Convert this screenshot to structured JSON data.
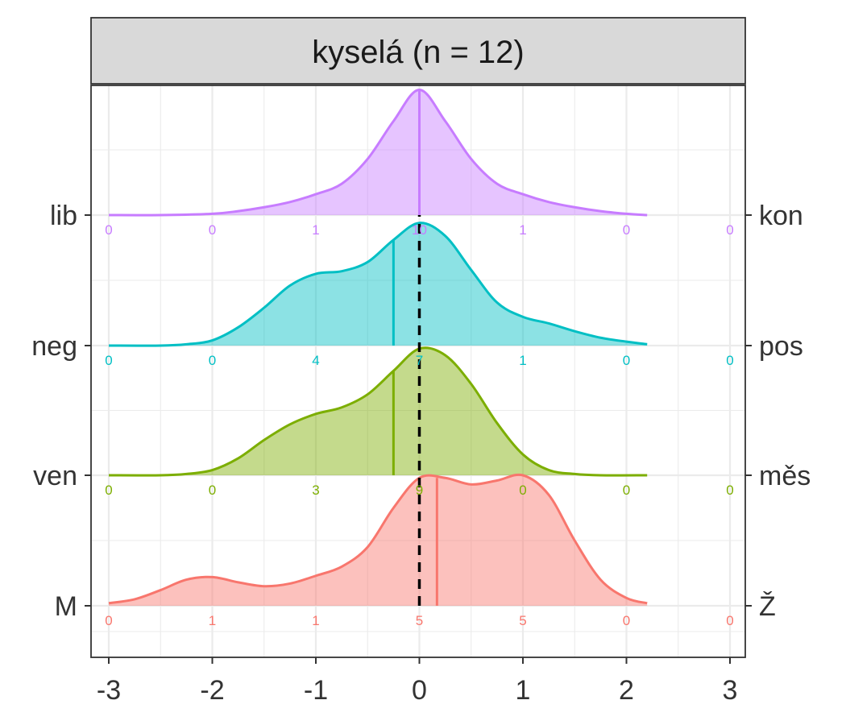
{
  "chart_data": {
    "type": "ridgeline",
    "title": "kyselá (n = 12)",
    "xlim": [
      -3,
      3
    ],
    "x_ticks": [
      "-3",
      "-2",
      "-1",
      "0",
      "1",
      "2",
      "3"
    ],
    "grid": true,
    "reference_line": {
      "x": 0,
      "style": "dashed"
    },
    "count_bins": [
      -3,
      -2,
      -1,
      0,
      1,
      2,
      3
    ],
    "series": [
      {
        "left_label": "M",
        "right_label": "Ž",
        "color": "#F8766D",
        "counts": [
          "0",
          "1",
          "1",
          "5",
          "5",
          "0",
          "0"
        ],
        "mean": 0.17,
        "density": [
          [
            -3,
            0.02
          ],
          [
            -2.75,
            0.05
          ],
          [
            -2.5,
            0.12
          ],
          [
            -2.25,
            0.2
          ],
          [
            -2,
            0.22
          ],
          [
            -1.75,
            0.18
          ],
          [
            -1.5,
            0.15
          ],
          [
            -1.25,
            0.17
          ],
          [
            -1,
            0.23
          ],
          [
            -0.75,
            0.3
          ],
          [
            -0.5,
            0.45
          ],
          [
            -0.25,
            0.75
          ],
          [
            0,
            0.98
          ],
          [
            0.25,
            0.98
          ],
          [
            0.5,
            0.93
          ],
          [
            0.75,
            0.96
          ],
          [
            1,
            1.0
          ],
          [
            1.25,
            0.85
          ],
          [
            1.5,
            0.5
          ],
          [
            1.75,
            0.2
          ],
          [
            2,
            0.06
          ],
          [
            2.2,
            0.02
          ]
        ]
      },
      {
        "left_label": "ven",
        "right_label": "měs",
        "color": "#7CAE00",
        "counts": [
          "0",
          "0",
          "3",
          "9",
          "0",
          "0",
          "0"
        ],
        "mean": -0.25,
        "density": [
          [
            -3,
            0.0
          ],
          [
            -2.5,
            0.0
          ],
          [
            -2.25,
            0.01
          ],
          [
            -2,
            0.04
          ],
          [
            -1.75,
            0.13
          ],
          [
            -1.5,
            0.27
          ],
          [
            -1.25,
            0.39
          ],
          [
            -1,
            0.47
          ],
          [
            -0.75,
            0.52
          ],
          [
            -0.5,
            0.62
          ],
          [
            -0.25,
            0.8
          ],
          [
            0,
            0.97
          ],
          [
            0.25,
            0.92
          ],
          [
            0.5,
            0.7
          ],
          [
            0.75,
            0.4
          ],
          [
            1,
            0.16
          ],
          [
            1.25,
            0.04
          ],
          [
            1.5,
            0.01
          ],
          [
            1.75,
            0.0
          ],
          [
            2.2,
            0.0
          ]
        ]
      },
      {
        "left_label": "neg",
        "right_label": "pos",
        "color": "#00BFC4",
        "counts": [
          "0",
          "0",
          "4",
          "7",
          "1",
          "0",
          "0"
        ],
        "mean": -0.25,
        "density": [
          [
            -3,
            0.0
          ],
          [
            -2.5,
            0.0
          ],
          [
            -2.25,
            0.01
          ],
          [
            -2,
            0.04
          ],
          [
            -1.75,
            0.14
          ],
          [
            -1.5,
            0.29
          ],
          [
            -1.25,
            0.46
          ],
          [
            -1,
            0.55
          ],
          [
            -0.75,
            0.57
          ],
          [
            -0.5,
            0.64
          ],
          [
            -0.25,
            0.81
          ],
          [
            0,
            0.94
          ],
          [
            0.25,
            0.84
          ],
          [
            0.5,
            0.58
          ],
          [
            0.75,
            0.33
          ],
          [
            1,
            0.22
          ],
          [
            1.25,
            0.17
          ],
          [
            1.5,
            0.11
          ],
          [
            1.75,
            0.06
          ],
          [
            2,
            0.03
          ],
          [
            2.2,
            0.01
          ]
        ]
      },
      {
        "left_label": "lib",
        "right_label": "kon",
        "color": "#C77CFF",
        "counts": [
          "0",
          "0",
          "1",
          "10",
          "1",
          "0",
          "0"
        ],
        "mean": 0.0,
        "density": [
          [
            -3,
            0.0
          ],
          [
            -2.5,
            0.0
          ],
          [
            -2,
            0.01
          ],
          [
            -1.75,
            0.03
          ],
          [
            -1.5,
            0.06
          ],
          [
            -1.25,
            0.1
          ],
          [
            -1,
            0.16
          ],
          [
            -0.75,
            0.24
          ],
          [
            -0.5,
            0.43
          ],
          [
            -0.25,
            0.72
          ],
          [
            0,
            0.96
          ],
          [
            0.25,
            0.72
          ],
          [
            0.5,
            0.43
          ],
          [
            0.75,
            0.24
          ],
          [
            1,
            0.16
          ],
          [
            1.25,
            0.1
          ],
          [
            1.5,
            0.06
          ],
          [
            1.75,
            0.03
          ],
          [
            2,
            0.01
          ],
          [
            2.2,
            0.0
          ]
        ]
      }
    ]
  }
}
